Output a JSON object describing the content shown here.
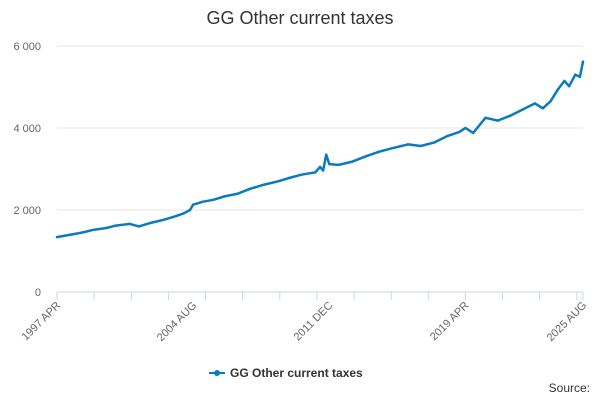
{
  "title": "GG Other current taxes",
  "source_text": "Source:",
  "colors": {
    "series": "#0b7bbd",
    "grid": "#e6e6e6",
    "axis": "#ccd6eb",
    "text": "#666666"
  },
  "chart_data": {
    "type": "line",
    "title": "GG Other current taxes",
    "xlabel": "",
    "ylabel": "",
    "x_tick_labels": [
      "1997 APR",
      "2004 AUG",
      "2011 DEC",
      "2019 APR",
      "2025 AUG"
    ],
    "y_ticks": [
      0,
      2000,
      4000,
      6000
    ],
    "y_tick_labels": [
      "0",
      "2 000",
      "4 000",
      "6 000"
    ],
    "ylim": [
      0,
      6000
    ],
    "xlim": [
      "1997-04",
      "2025-08"
    ],
    "grid": true,
    "legend": "bottom-center",
    "series": [
      {
        "name": "GG Other current taxes",
        "points": [
          [
            "1997-04",
            1340
          ],
          [
            "1998-01",
            1400
          ],
          [
            "1998-08",
            1450
          ],
          [
            "1999-04",
            1520
          ],
          [
            "1999-12",
            1560
          ],
          [
            "2000-06",
            1620
          ],
          [
            "2001-03",
            1660
          ],
          [
            "2001-09",
            1600
          ],
          [
            "2002-04",
            1680
          ],
          [
            "2003-01",
            1760
          ],
          [
            "2003-09",
            1850
          ],
          [
            "2004-02",
            1920
          ],
          [
            "2004-06",
            2000
          ],
          [
            "2004-08",
            2130
          ],
          [
            "2005-02",
            2200
          ],
          [
            "2005-09",
            2250
          ],
          [
            "2006-04",
            2330
          ],
          [
            "2007-01",
            2400
          ],
          [
            "2007-09",
            2520
          ],
          [
            "2008-06",
            2620
          ],
          [
            "2009-03",
            2700
          ],
          [
            "2009-10",
            2780
          ],
          [
            "2010-06",
            2860
          ],
          [
            "2011-03",
            2920
          ],
          [
            "2011-06",
            3050
          ],
          [
            "2011-08",
            2960
          ],
          [
            "2011-10",
            3350
          ],
          [
            "2011-12",
            3120
          ],
          [
            "2012-06",
            3100
          ],
          [
            "2013-03",
            3180
          ],
          [
            "2013-11",
            3300
          ],
          [
            "2014-08",
            3420
          ],
          [
            "2015-06",
            3520
          ],
          [
            "2016-03",
            3600
          ],
          [
            "2016-11",
            3560
          ],
          [
            "2017-08",
            3650
          ],
          [
            "2018-04",
            3800
          ],
          [
            "2018-12",
            3900
          ],
          [
            "2019-04",
            4000
          ],
          [
            "2019-09",
            3880
          ],
          [
            "2020-05",
            4250
          ],
          [
            "2021-01",
            4180
          ],
          [
            "2021-09",
            4300
          ],
          [
            "2022-05",
            4450
          ],
          [
            "2023-01",
            4600
          ],
          [
            "2023-06",
            4480
          ],
          [
            "2023-11",
            4650
          ],
          [
            "2024-04",
            4950
          ],
          [
            "2024-08",
            5150
          ],
          [
            "2024-11",
            5020
          ],
          [
            "2025-03",
            5300
          ],
          [
            "2025-06",
            5250
          ],
          [
            "2025-08",
            5620
          ]
        ]
      }
    ]
  }
}
